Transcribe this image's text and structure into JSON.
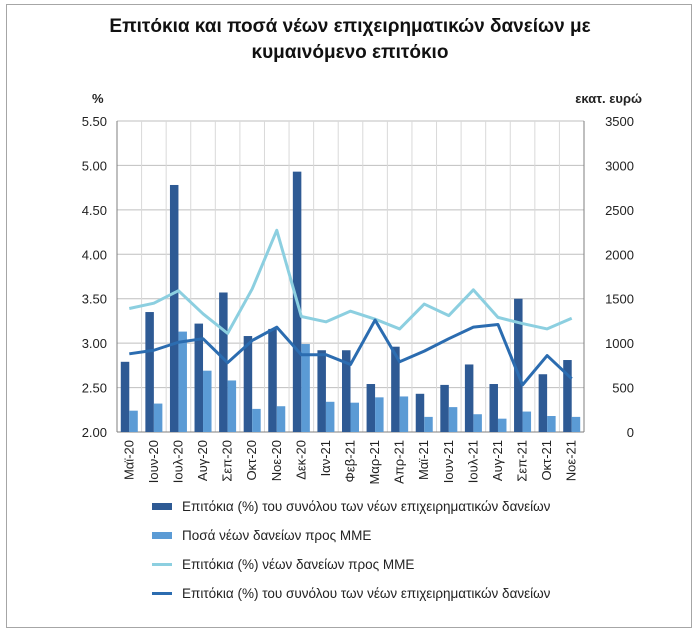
{
  "chart_data": {
    "type": "bar",
    "title": "Επιτόκια και ποσά νέων επιχειρηματικών δανείων με κυμαινόμενο επιτόκιο",
    "title_lines": [
      "Επιτόκια και ποσά νέων επιχειρηματικών δανείων με",
      "κυμαινόμενο επιτόκιο"
    ],
    "ylabel_left": "%",
    "ylabel_right": "εκατ. ευρώ",
    "ylim_left": [
      2.0,
      5.5
    ],
    "ylim_right": [
      0,
      3500
    ],
    "yticks_left": [
      "2.00",
      "2.50",
      "3.00",
      "3.50",
      "4.00",
      "4.50",
      "5.00",
      "5.50"
    ],
    "yticks_right": [
      "0",
      "500",
      "1000",
      "1500",
      "2000",
      "2500",
      "3000",
      "3500"
    ],
    "categories": [
      "Μαϊ-20",
      "Ιουν-20",
      "Ιουλ-20",
      "Αυγ-20",
      "Σεπ-20",
      "Οκτ-20",
      "Νοε-20",
      "Δεκ-20",
      "Ιαν-21",
      "Φεβ-21",
      "Μαρ-21",
      "Απρ-21",
      "Μαϊ-21",
      "Ιουν-21",
      "Ιουλ-21",
      "Αυγ-21",
      "Σεπ-21",
      "Οκτ-21",
      "Νοε-21"
    ],
    "series": [
      {
        "name": "Επιτόκια (%) του συνόλου των νέων επιχειρηματικών δανείων",
        "kind": "bar",
        "axis": "right",
        "color": "#2e5a94",
        "values": [
          790,
          1350,
          2780,
          1220,
          1570,
          1080,
          1160,
          2930,
          920,
          920,
          540,
          960,
          430,
          530,
          760,
          540,
          1500,
          650,
          810
        ]
      },
      {
        "name": "Ποσά νέων δανείων προς ΜΜΕ",
        "kind": "bar",
        "axis": "right",
        "color": "#5b9bd5",
        "values": [
          240,
          320,
          1130,
          690,
          580,
          260,
          290,
          990,
          340,
          330,
          390,
          400,
          170,
          280,
          200,
          150,
          230,
          180,
          170
        ]
      },
      {
        "name": "Επιτόκια (%) νέων δανείων προς ΜΜΕ",
        "kind": "line",
        "axis": "left",
        "color": "#8ccfe0",
        "values": [
          3.39,
          3.45,
          3.59,
          3.33,
          3.11,
          3.61,
          4.27,
          3.3,
          3.24,
          3.36,
          3.27,
          3.16,
          3.44,
          3.31,
          3.6,
          3.29,
          3.22,
          3.16,
          3.28
        ]
      },
      {
        "name": "Επιτόκια (%) του συνόλου των νέων επιχειρηματικών δανείων",
        "kind": "line",
        "axis": "left",
        "color": "#2b6cb0",
        "values": [
          2.88,
          2.92,
          3.01,
          3.05,
          2.78,
          3.03,
          3.18,
          2.87,
          2.87,
          2.76,
          3.26,
          2.79,
          2.91,
          3.05,
          3.18,
          3.21,
          2.53,
          2.86,
          2.6
        ]
      }
    ]
  }
}
